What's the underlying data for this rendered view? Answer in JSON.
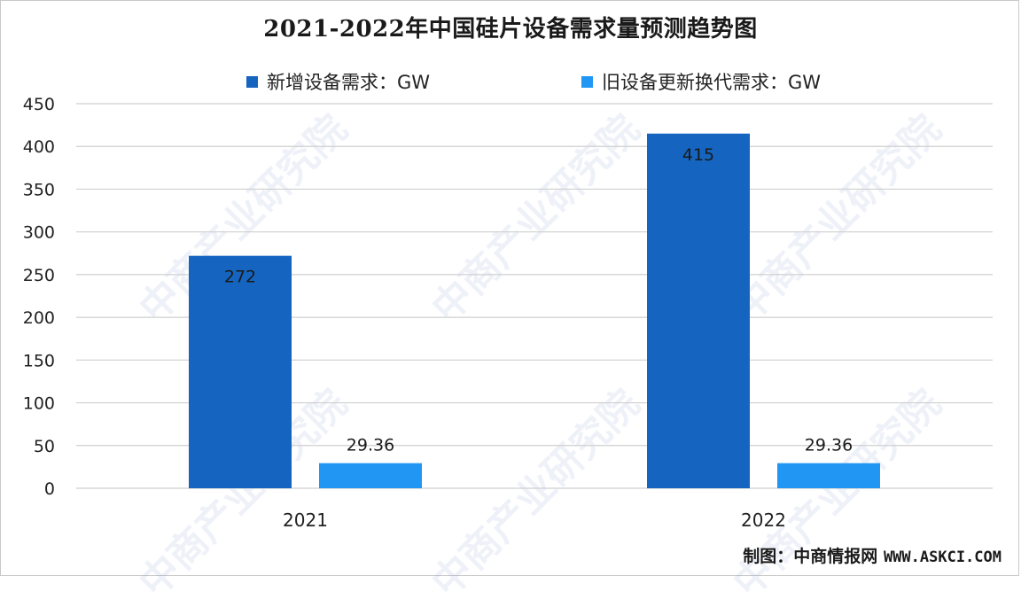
{
  "chart_data": {
    "type": "bar",
    "title": "2021-2022年中国硅片设备需求量预测趋势图",
    "categories": [
      "2021",
      "2022"
    ],
    "series": [
      {
        "name": "新增设备需求：GW",
        "values": [
          272,
          415
        ],
        "labels": [
          "272",
          "415"
        ],
        "color": "#1565c0"
      },
      {
        "name": "旧设备更新换代需求：GW",
        "values": [
          29.36,
          29.36
        ],
        "labels": [
          "29.36",
          "29.36"
        ],
        "color": "#2196f3"
      }
    ],
    "ylim": [
      0,
      450
    ],
    "yticks": [
      "0",
      "50",
      "100",
      "150",
      "200",
      "250",
      "300",
      "350",
      "400",
      "450"
    ],
    "grid": true,
    "legend_position": "top"
  },
  "credit": {
    "label": "制图：中商情报网",
    "site": "WWW.ASKCI.COM"
  },
  "watermark": {
    "text": "中商产业研究院"
  }
}
